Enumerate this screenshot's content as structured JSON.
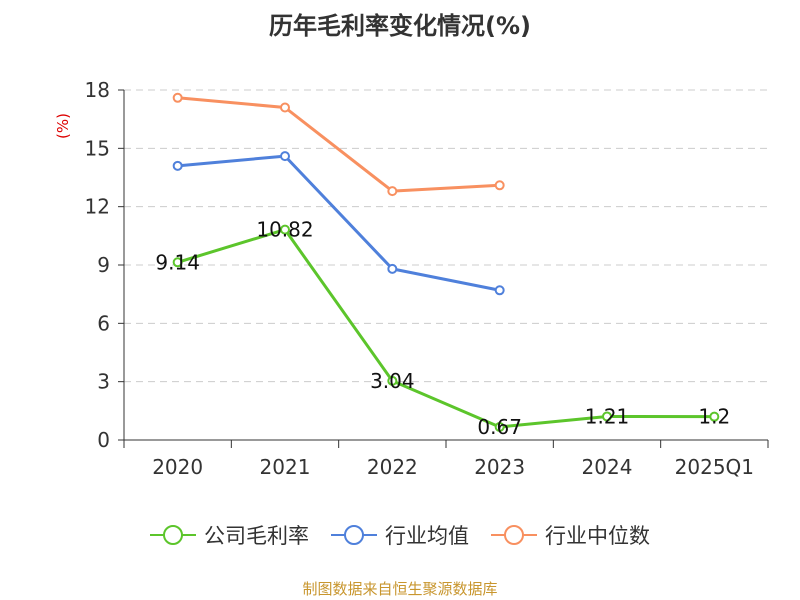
{
  "title": "历年毛利率变化情况(%)",
  "source": "制图数据来自恒生聚源数据库",
  "chart_data": {
    "type": "line",
    "title": "历年毛利率变化情况(%)",
    "ylabel": "(%)",
    "xlabel": "",
    "categories": [
      "2020",
      "2021",
      "2022",
      "2023",
      "2024",
      "2025Q1"
    ],
    "ylim": [
      0,
      18
    ],
    "yticks": [
      0,
      3,
      6,
      9,
      12,
      15,
      18
    ],
    "grid": true,
    "legend_position": "bottom",
    "series": [
      {
        "name": "公司毛利率",
        "color": "#5cc52b",
        "values": [
          9.14,
          10.82,
          3.04,
          0.67,
          1.21,
          1.2
        ],
        "labels": [
          "9.14",
          "10.82",
          "3.04",
          "0.67",
          "1.21",
          "1.2"
        ]
      },
      {
        "name": "行业均值",
        "color": "#4f80db",
        "values": [
          14.1,
          14.6,
          8.8,
          7.7,
          null,
          null
        ]
      },
      {
        "name": "行业中位数",
        "color": "#f89060",
        "values": [
          17.6,
          17.1,
          12.8,
          13.1,
          null,
          null
        ]
      }
    ]
  }
}
